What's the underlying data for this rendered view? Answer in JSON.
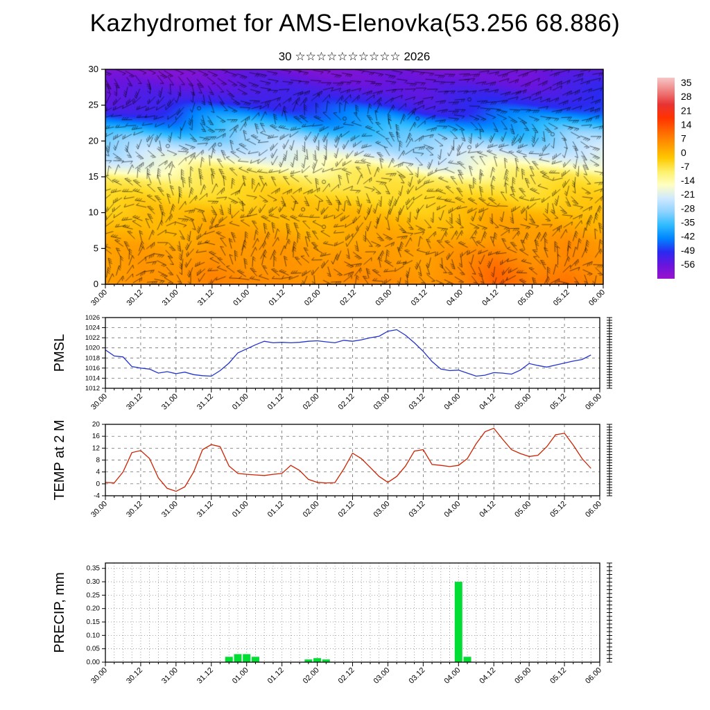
{
  "title": "Kazhydromet for AMS-Elenovka(53.256 68.886)",
  "subtitle": "30 ☆☆☆☆☆☆☆☆☆☆ 2026",
  "x_tick_labels": [
    "30.00",
    "30.12",
    "31.00",
    "31.12",
    "01.00",
    "01.12",
    "02.00",
    "02.12",
    "03.00",
    "03.12",
    "04.00",
    "04.12",
    "05.00",
    "05.12",
    "06.00"
  ],
  "time_step_hours": 3,
  "colorbar": {
    "labels": [
      "35",
      "28",
      "21",
      "14",
      "7",
      "0",
      "-7",
      "-14",
      "-21",
      "-28",
      "-35",
      "-42",
      "-49",
      "-56"
    ],
    "gradient": [
      "#f6c6c6",
      "#ef8080",
      "#e83333",
      "#ff3300",
      "#ff6600",
      "#ff9900",
      "#ffc800",
      "#fdf06a",
      "#ffffc2",
      "#cfe9ff",
      "#8ed3ff",
      "#2fbbff",
      "#0084ff",
      "#2a2af0",
      "#6a14dd",
      "#9914cc"
    ]
  },
  "chart_data": [
    {
      "type": "heatmap",
      "name": "temperature-height-section",
      "title": "",
      "ylabel": "",
      "y_ticks": [
        0,
        5,
        10,
        15,
        20,
        25,
        30
      ],
      "ylim": [
        0,
        30
      ],
      "columns": [
        "30.00",
        "30.12",
        "31.00",
        "31.12",
        "01.00",
        "01.12",
        "02.00",
        "02.12",
        "03.00",
        "03.12",
        "04.00",
        "04.12",
        "05.00",
        "05.12",
        "06.00"
      ],
      "heights": [
        0,
        5,
        10,
        15,
        20,
        25,
        30
      ],
      "grid": [
        [
          10,
          12,
          11,
          13,
          12,
          12,
          11,
          12,
          12,
          11,
          13,
          17,
          13,
          15,
          12
        ],
        [
          9,
          10,
          9,
          11,
          10,
          10,
          9,
          10,
          10,
          9,
          11,
          13,
          11,
          12,
          10
        ],
        [
          5,
          6,
          5,
          6,
          6,
          6,
          5,
          6,
          6,
          5,
          6,
          8,
          7,
          7,
          6
        ],
        [
          -3,
          -2,
          -3,
          -2,
          -2,
          -2,
          -3,
          -2,
          -2,
          -3,
          -2,
          -1,
          -2,
          -1,
          -2
        ],
        [
          -23,
          -22,
          -23,
          -21,
          -21,
          -22,
          -23,
          -22,
          -21,
          -23,
          -21,
          -20,
          -21,
          -20,
          -20
        ],
        [
          -47,
          -46,
          -47,
          -45,
          -44,
          -45,
          -46,
          -45,
          -44,
          -46,
          -44,
          -43,
          -44,
          -43,
          -42
        ],
        [
          -56,
          -56,
          -56,
          -55,
          -54,
          -55,
          -56,
          -55,
          -54,
          -56,
          -54,
          -53,
          -54,
          -52,
          -51
        ]
      ],
      "legend": "temperature color shading with wind barbs, colorbar 35 to -56"
    },
    {
      "type": "line",
      "name": "pmsl",
      "ylabel": "PMSL",
      "color": "#2233cc",
      "ylim": [
        1012,
        1026
      ],
      "y_ticks": [
        1026,
        1024,
        1022,
        1020,
        1018,
        1016,
        1014,
        1012
      ],
      "y_tick_labels": [
        "1026",
        "1024",
        "1022",
        "1020",
        "1018",
        "1016",
        "1014",
        "1012"
      ],
      "values": [
        1019.6,
        1018.4,
        1018.2,
        1016.3,
        1016.0,
        1015.8,
        1015.0,
        1015.3,
        1014.9,
        1015.2,
        1014.7,
        1014.5,
        1014.4,
        1015.5,
        1017.0,
        1019.0,
        1019.8,
        1020.6,
        1021.3,
        1021.0,
        1021.1,
        1021.0,
        1021.1,
        1021.3,
        1021.4,
        1021.2,
        1021.0,
        1021.5,
        1021.3,
        1021.6,
        1022.0,
        1022.3,
        1023.3,
        1023.6,
        1022.5,
        1021.0,
        1019.3,
        1017.3,
        1015.8,
        1015.5,
        1015.6,
        1015.0,
        1014.4,
        1014.6,
        1015.1,
        1015.0,
        1014.8,
        1015.6,
        1016.9,
        1016.5,
        1016.2,
        1016.6,
        1017.0,
        1017.4,
        1017.7,
        1018.6
      ]
    },
    {
      "type": "line",
      "name": "temp-2m",
      "ylabel": "TEMP at 2 M",
      "color": "#cc2200",
      "ylim": [
        -4,
        20
      ],
      "y_ticks": [
        20,
        16,
        12,
        8,
        4,
        0,
        -4
      ],
      "y_tick_labels": [
        "20",
        "16",
        "12",
        "8",
        "4",
        "0",
        "-4"
      ],
      "values": [
        0.5,
        0.3,
        4.0,
        10.5,
        11.2,
        8.5,
        2.0,
        -1.5,
        -2.5,
        -1.0,
        4.0,
        11.5,
        13.2,
        12.5,
        6.0,
        3.5,
        3.2,
        3.0,
        2.8,
        3.2,
        3.5,
        6.2,
        4.5,
        1.5,
        0.5,
        0.3,
        0.4,
        5.0,
        10.3,
        8.5,
        5.5,
        2.5,
        0.5,
        2.5,
        6.0,
        11.0,
        11.5,
        6.5,
        6.2,
        5.8,
        6.2,
        8.5,
        13.5,
        17.5,
        18.7,
        15.0,
        11.5,
        10.2,
        9.2,
        9.6,
        12.5,
        16.5,
        17.0,
        13.0,
        8.5,
        5.2
      ]
    },
    {
      "type": "bar",
      "name": "precip",
      "ylabel": "PRECIP, mm",
      "color": "#00dd33",
      "ylim": [
        0,
        0.37
      ],
      "y_ticks": [
        0.35,
        0.3,
        0.25,
        0.2,
        0.15,
        0.1,
        0.05,
        0.0
      ],
      "y_tick_labels": [
        "0.35",
        "0.30",
        "0.25",
        "0.20",
        "0.15",
        "0.10",
        "0.05",
        "0.00"
      ],
      "values": [
        0,
        0,
        0,
        0,
        0,
        0,
        0,
        0,
        0,
        0,
        0,
        0,
        0,
        0,
        0.02,
        0.03,
        0.03,
        0.02,
        0,
        0,
        0,
        0,
        0,
        0.01,
        0.015,
        0.01,
        0,
        0,
        0,
        0,
        0,
        0,
        0,
        0,
        0,
        0,
        0,
        0,
        0,
        0,
        0.3,
        0.02,
        0,
        0,
        0,
        0,
        0,
        0,
        0,
        0,
        0,
        0,
        0,
        0,
        0,
        0
      ]
    }
  ]
}
